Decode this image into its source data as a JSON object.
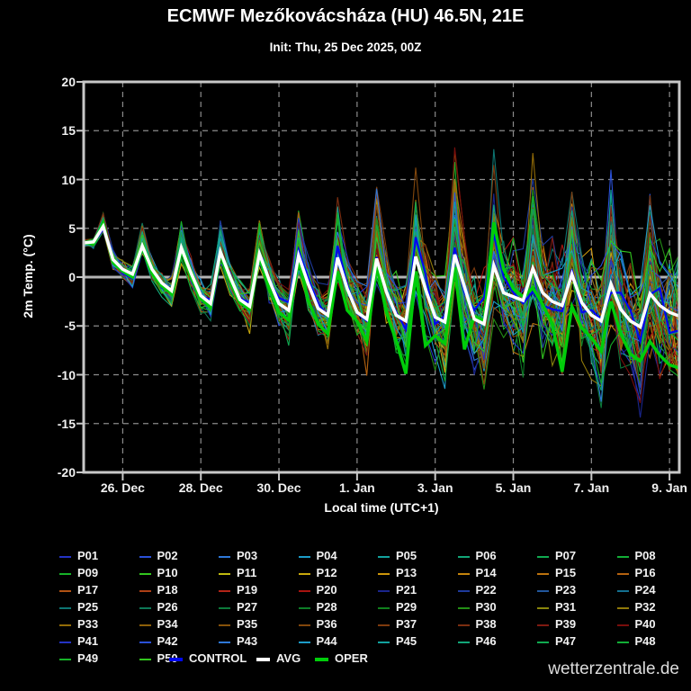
{
  "header": {
    "title": "ECMWF Mezőkovácsháza (HU) 46.5N, 21E",
    "subtitle": "Init: Thu, 25 Dec 2025, 00Z"
  },
  "watermark": "wetterzentrale.de",
  "legend": {
    "control_label": "CONTROL",
    "avg_label": "AVG",
    "oper_label": "OPER"
  },
  "colors": {
    "background": "#000000",
    "axis_border": "#c8c8c8",
    "grid": "#8c8c8c",
    "zero_line": "#b4b4b4",
    "text": "#f0f0f0",
    "avg": "#ffffff",
    "oper": "#00cd0a",
    "control": "#0008f0"
  },
  "chart_data": {
    "type": "line",
    "title": "ECMWF Mezőkovácsháza (HU) 46.5N, 21E",
    "subtitle": "Init: Thu, 25 Dec 2025, 00Z",
    "xlabel": "Local time (UTC+1)",
    "ylabel": "2m Temp. (°C)",
    "ylim": [
      -20,
      20
    ],
    "yticks": [
      20,
      15,
      10,
      5,
      0,
      -5,
      -10,
      -15,
      -20
    ],
    "grid": "dashed",
    "zero_line": true,
    "x_hours_step": 6,
    "x_hours_end": 366,
    "x_ticks": [
      {
        "hour": 24,
        "label": "26. Dec"
      },
      {
        "hour": 72,
        "label": "28. Dec"
      },
      {
        "hour": 120,
        "label": "30. Dec"
      },
      {
        "hour": 168,
        "label": "1. Jan"
      },
      {
        "hour": 216,
        "label": "3. Jan"
      },
      {
        "hour": 264,
        "label": "5. Jan"
      },
      {
        "hour": 312,
        "label": "7. Jan"
      },
      {
        "hour": 360,
        "label": "9. Jan"
      }
    ],
    "series": [
      {
        "name": "AVG",
        "color": "#ffffff",
        "width": 3.5,
        "values": [
          3.5,
          3.6,
          5.2,
          1.8,
          0.8,
          0.3,
          3.2,
          0.8,
          -0.6,
          -1.4,
          3.0,
          0.4,
          -1.9,
          -2.7,
          2.6,
          0.0,
          -2.3,
          -3.0,
          2.4,
          -0.3,
          -2.7,
          -3.4,
          2.2,
          -0.7,
          -3.2,
          -3.9,
          2.0,
          -1.2,
          -3.6,
          -4.3,
          1.9,
          -1.5,
          -3.9,
          -4.5,
          2.1,
          -1.2,
          -4.1,
          -4.6,
          2.3,
          -1.0,
          -4.3,
          -4.8,
          1.2,
          -1.6,
          -2.0,
          -2.4,
          0.9,
          -1.6,
          -2.5,
          -2.9,
          0.3,
          -2.6,
          -3.9,
          -4.5,
          -0.7,
          -3.3,
          -4.5,
          -5.1,
          -1.7,
          -2.9,
          -3.6,
          -4.0
        ]
      },
      {
        "name": "OPER",
        "color": "#00cd0a",
        "width": 3.5,
        "values": [
          3.5,
          3.4,
          5.5,
          1.5,
          0.6,
          0.0,
          3.0,
          0.4,
          -0.9,
          -1.7,
          2.8,
          0.0,
          -2.2,
          -3.1,
          2.4,
          -0.4,
          -2.6,
          -3.3,
          2.1,
          -1.2,
          -3.6,
          -4.4,
          1.7,
          -2.4,
          -4.8,
          -5.8,
          0.6,
          -3.4,
          -4.5,
          -6.6,
          1.2,
          -3.6,
          -6.5,
          -9.9,
          0.6,
          -7.0,
          -6.0,
          -6.8,
          1.0,
          -7.4,
          -4.0,
          -4.5,
          5.6,
          0.8,
          -1.2,
          -2.0,
          -1.1,
          -2.8,
          -4.8,
          -9.7,
          -3.0,
          -5.2,
          -6.2,
          -7.6,
          -2.5,
          -5.8,
          -7.9,
          -8.6,
          -6.6,
          -8.0,
          -9.0,
          -9.3
        ]
      },
      {
        "name": "CONTROL",
        "color": "#0008f0",
        "width": 2.2,
        "synthesized": true
      }
    ],
    "ensemble": {
      "member_labels": [
        "P01",
        "P02",
        "P03",
        "P04",
        "P05",
        "P06",
        "P07",
        "P08",
        "P09",
        "P10",
        "P11",
        "P12",
        "P13",
        "P14",
        "P15",
        "P16",
        "P17",
        "P18",
        "P19",
        "P20",
        "P21",
        "P22",
        "P23",
        "P24",
        "P25",
        "P26",
        "P27",
        "P28",
        "P29",
        "P30",
        "P31",
        "P32",
        "P33",
        "P34",
        "P35",
        "P36",
        "P37",
        "P38",
        "P39",
        "P40",
        "P41",
        "P42",
        "P43",
        "P44",
        "P45",
        "P46",
        "P47",
        "P48",
        "P49",
        "P50"
      ],
      "spread_envelope": [
        0.3,
        0.7,
        1.1,
        1.4,
        1.5,
        1.6,
        1.8,
        1.9,
        2.0,
        2.1,
        2.2,
        2.3,
        2.4,
        2.5,
        2.6,
        2.7,
        2.8,
        2.9,
        3.0,
        3.1,
        3.2,
        3.4,
        3.6,
        3.8,
        4.0,
        4.2,
        4.4,
        4.6,
        4.8,
        5.0,
        5.2,
        5.4,
        5.6,
        5.8,
        6.0,
        6.2,
        6.4,
        6.6,
        6.9,
        7.1,
        7.3,
        7.5,
        7.7,
        7.9,
        8.0,
        8.1,
        8.2,
        8.3,
        8.4,
        8.5,
        8.6,
        8.7,
        8.8,
        8.9,
        9.0,
        9.1,
        9.2,
        9.3,
        9.4,
        9.5,
        9.6,
        9.6
      ],
      "palette_base20": [
        "#2433c4",
        "#2a50d8",
        "#2e78d8",
        "#1c9cc8",
        "#12a29e",
        "#12a678",
        "#10aa50",
        "#12ae36",
        "#16b228",
        "#32c61e",
        "#c0ba10",
        "#c8a80c",
        "#cc960a",
        "#c4840c",
        "#bc720e",
        "#b46210",
        "#b05214",
        "#ac4016",
        "#b22418",
        "#a81410"
      ],
      "cycle_brightness": [
        1,
        0.72,
        1
      ],
      "seed_base": 1000,
      "seed_step": 77,
      "control_seed": 555
    }
  }
}
